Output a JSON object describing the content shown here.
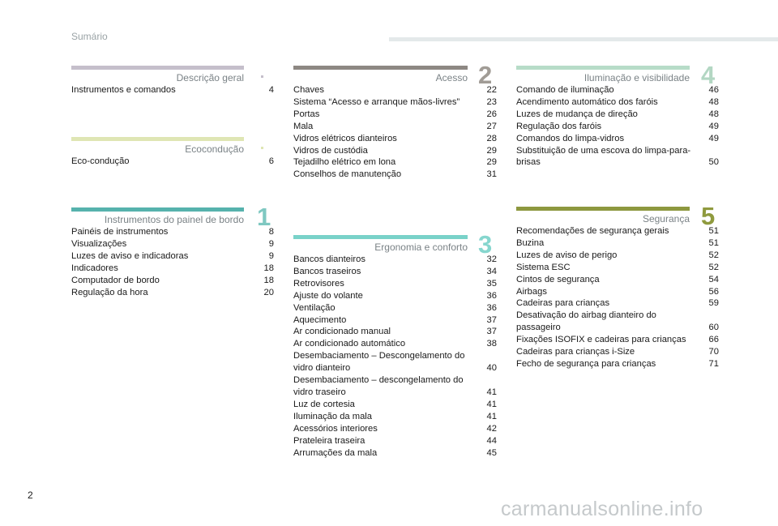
{
  "header": {
    "title": "Sumário"
  },
  "page_number": "2",
  "watermark": "carmanualsonline.info",
  "colors": {
    "descricao": "#c5bfcb",
    "ecoconducao": "#dfe6b4",
    "instrumentos": "#56b2ad",
    "acesso": "#8d8883",
    "ergonomia": "#79d2c9",
    "iluminacao": "#b7dcc8",
    "seguranca": "#8d983f",
    "num_instrumentos": "#7fc8c1",
    "num_acesso": "#a19c96",
    "num_ergonomia": "#86d6ce",
    "num_iluminacao": "#b3d7c3",
    "num_seguranca": "#8f9a3e"
  },
  "sections": {
    "descricao": {
      "title": "Descrição geral",
      "entries": [
        {
          "label": "Instrumentos e comandos",
          "page": "4"
        }
      ]
    },
    "ecoconducao": {
      "title": "Ecocondução",
      "entries": [
        {
          "label": "Eco-condução",
          "page": "6"
        }
      ]
    },
    "instrumentos": {
      "title": "Instrumentos do painel de bordo",
      "number": "1",
      "entries": [
        {
          "label": "Painéis de instrumentos",
          "page": "8"
        },
        {
          "label": "Visualizações",
          "page": "9"
        },
        {
          "label": "Luzes de aviso e indicadoras",
          "page": "9"
        },
        {
          "label": "Indicadores",
          "page": "18"
        },
        {
          "label": "Computador de bordo",
          "page": "18"
        },
        {
          "label": "Regulação da hora",
          "page": "20"
        }
      ]
    },
    "acesso": {
      "title": "Acesso",
      "number": "2",
      "entries": [
        {
          "label": "Chaves",
          "page": "22"
        },
        {
          "label": "Sistema “Acesso e arranque mãos-livres”",
          "page": "23"
        },
        {
          "label": "Portas",
          "page": "26"
        },
        {
          "label": "Mala",
          "page": "27"
        },
        {
          "label": "Vidros elétricos dianteiros",
          "page": "28"
        },
        {
          "label": "Vidros de custódia",
          "page": "29"
        },
        {
          "label": "Tejadilho elétrico em lona",
          "page": "29"
        },
        {
          "label": "Conselhos de manutenção",
          "page": "31"
        }
      ]
    },
    "ergonomia": {
      "title": "Ergonomia e conforto",
      "number": "3",
      "entries": [
        {
          "label": "Bancos dianteiros",
          "page": "32"
        },
        {
          "label": "Bancos traseiros",
          "page": "34"
        },
        {
          "label": "Retrovisores",
          "page": "35"
        },
        {
          "label": "Ajuste do volante",
          "page": "36"
        },
        {
          "label": "Ventilação",
          "page": "36"
        },
        {
          "label": "Aquecimento",
          "page": "37"
        },
        {
          "label": "Ar condicionado manual",
          "page": "37"
        },
        {
          "label": "Ar condicionado automático",
          "page": "38"
        },
        {
          "label": "Desembaciamento – Descongelamento do vidro dianteiro",
          "page": "40"
        },
        {
          "label": "Desembaciamento – descongelamento do vidro traseiro",
          "page": "41"
        },
        {
          "label": "Luz de cortesia",
          "page": "41"
        },
        {
          "label": "Iluminação da mala",
          "page": "41"
        },
        {
          "label": "Acessórios interiores",
          "page": "42"
        },
        {
          "label": "Prateleira traseira",
          "page": "44"
        },
        {
          "label": "Arrumações da mala",
          "page": "45"
        }
      ]
    },
    "iluminacao": {
      "title": "Iluminação e visibilidade",
      "number": "4",
      "entries": [
        {
          "label": "Comando de iluminação",
          "page": "46"
        },
        {
          "label": "Acendimento automático dos faróis",
          "page": "48"
        },
        {
          "label": "Luzes de mudança de direção",
          "page": "48"
        },
        {
          "label": "Regulação dos faróis",
          "page": "49"
        },
        {
          "label": "Comandos do limpa-vidros",
          "page": "49"
        },
        {
          "label": "Substituição de uma escova do limpa-para-brisas",
          "page": "50"
        }
      ]
    },
    "seguranca": {
      "title": "Segurança",
      "number": "5",
      "entries": [
        {
          "label": "Recomendações de segurança gerais",
          "page": "51"
        },
        {
          "label": "Buzina",
          "page": "51"
        },
        {
          "label": "Luzes de aviso de perigo",
          "page": "52"
        },
        {
          "label": "Sistema ESC",
          "page": "52"
        },
        {
          "label": "Cintos de segurança",
          "page": "54"
        },
        {
          "label": "Airbags",
          "page": "56"
        },
        {
          "label": "Cadeiras para crianças",
          "page": "59"
        },
        {
          "label": "Desativação do airbag dianteiro do passageiro",
          "page": "60"
        },
        {
          "label": "Fixações ISOFIX e cadeiras para crianças",
          "page": "66"
        },
        {
          "label": "Cadeiras para crianças i-Size",
          "page": "70"
        },
        {
          "label": "Fecho de segurança para crianças",
          "page": "71"
        }
      ]
    }
  }
}
